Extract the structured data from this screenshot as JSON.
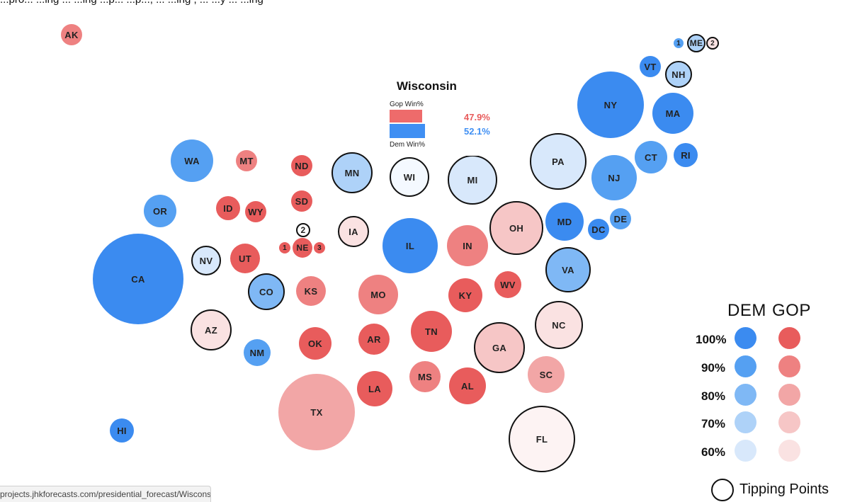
{
  "page": {
    "top_text": "...pro... ...ing ... ...ing ...p... ...p..., ... ...ing , ... ...y ... ...ing"
  },
  "status_bar": {
    "url": "projects.jhkforecasts.com/presidential_forecast/Wisconsin"
  },
  "tooltip": {
    "state": "Wisconsin",
    "gop_label": "Gop Win%",
    "dem_label": "Dem Win%",
    "gop_value": "47.9%",
    "dem_value": "52.1%",
    "gop_win_pct": 47.9,
    "dem_win_pct": 52.1
  },
  "legend": {
    "dem_heading": "DEM",
    "gop_heading": "GOP",
    "levels": [
      "100%",
      "90%",
      "80%",
      "70%",
      "60%"
    ],
    "dem_colors": [
      "#3b8bf0",
      "#55a0f2",
      "#7fb8f5",
      "#aed2f8",
      "#d8e8fb"
    ],
    "gop_colors": [
      "#e85c5c",
      "#ee8181",
      "#f2a6a6",
      "#f6c6c6",
      "#fae2e2"
    ],
    "tipping_label": "Tipping Points"
  },
  "states": [
    {
      "abbr": "AK",
      "color": "#ee8181",
      "tip": false
    },
    {
      "abbr": "HI",
      "color": "#3b8bf0",
      "tip": false
    },
    {
      "abbr": "WA",
      "color": "#55a0f2",
      "tip": false
    },
    {
      "abbr": "OR",
      "color": "#55a0f2",
      "tip": false
    },
    {
      "abbr": "CA",
      "color": "#3b8bf0",
      "tip": false
    },
    {
      "abbr": "NV",
      "color": "#d8e8fb",
      "tip": true
    },
    {
      "abbr": "ID",
      "color": "#e85c5c",
      "tip": false
    },
    {
      "abbr": "MT",
      "color": "#ee8181",
      "tip": false
    },
    {
      "abbr": "WY",
      "color": "#e85c5c",
      "tip": false
    },
    {
      "abbr": "UT",
      "color": "#e85c5c",
      "tip": false
    },
    {
      "abbr": "AZ",
      "color": "#fae2e2",
      "tip": true
    },
    {
      "abbr": "CO",
      "color": "#7fb8f5",
      "tip": true
    },
    {
      "abbr": "NM",
      "color": "#55a0f2",
      "tip": false
    },
    {
      "abbr": "ND",
      "color": "#e85c5c",
      "tip": false
    },
    {
      "abbr": "SD",
      "color": "#e85c5c",
      "tip": false
    },
    {
      "abbr": "2",
      "color": "#ffffff",
      "tip": true
    },
    {
      "abbr": "1",
      "color": "#e85c5c",
      "tip": false
    },
    {
      "abbr": "NE",
      "color": "#e85c5c",
      "tip": false
    },
    {
      "abbr": "3",
      "color": "#e85c5c",
      "tip": false
    },
    {
      "abbr": "KS",
      "color": "#ee8181",
      "tip": false
    },
    {
      "abbr": "OK",
      "color": "#e85c5c",
      "tip": false
    },
    {
      "abbr": "TX",
      "color": "#f2a6a6",
      "tip": false
    },
    {
      "abbr": "MN",
      "color": "#aed2f8",
      "tip": true
    },
    {
      "abbr": "IA",
      "color": "#fae2e2",
      "tip": true
    },
    {
      "abbr": "MO",
      "color": "#ee8181",
      "tip": false
    },
    {
      "abbr": "AR",
      "color": "#e85c5c",
      "tip": false
    },
    {
      "abbr": "LA",
      "color": "#e85c5c",
      "tip": false
    },
    {
      "abbr": "WI",
      "color": "#f4f9ff",
      "tip": true
    },
    {
      "abbr": "IL",
      "color": "#3b8bf0",
      "tip": false
    },
    {
      "abbr": "MI",
      "color": "#d8e8fb",
      "tip": true
    },
    {
      "abbr": "IN",
      "color": "#ee8181",
      "tip": false
    },
    {
      "abbr": "KY",
      "color": "#e85c5c",
      "tip": false
    },
    {
      "abbr": "TN",
      "color": "#e85c5c",
      "tip": false
    },
    {
      "abbr": "MS",
      "color": "#ee8181",
      "tip": false
    },
    {
      "abbr": "AL",
      "color": "#e85c5c",
      "tip": false
    },
    {
      "abbr": "OH",
      "color": "#f6c6c6",
      "tip": true
    },
    {
      "abbr": "WV",
      "color": "#e85c5c",
      "tip": false
    },
    {
      "abbr": "GA",
      "color": "#f6c6c6",
      "tip": true
    },
    {
      "abbr": "FL",
      "color": "#fdf3f3",
      "tip": true
    },
    {
      "abbr": "PA",
      "color": "#d8e8fb",
      "tip": true
    },
    {
      "abbr": "MD",
      "color": "#3b8bf0",
      "tip": false
    },
    {
      "abbr": "DC",
      "color": "#3b8bf0",
      "tip": false
    },
    {
      "abbr": "DE",
      "color": "#55a0f2",
      "tip": false
    },
    {
      "abbr": "VA",
      "color": "#7fb8f5",
      "tip": true
    },
    {
      "abbr": "NC",
      "color": "#fae2e2",
      "tip": true
    },
    {
      "abbr": "SC",
      "color": "#f2a6a6",
      "tip": false
    },
    {
      "abbr": "NY",
      "color": "#3b8bf0",
      "tip": false
    },
    {
      "abbr": "NJ",
      "color": "#55a0f2",
      "tip": false
    },
    {
      "abbr": "CT",
      "color": "#55a0f2",
      "tip": false
    },
    {
      "abbr": "RI",
      "color": "#3b8bf0",
      "tip": false
    },
    {
      "abbr": "MA",
      "color": "#3b8bf0",
      "tip": false
    },
    {
      "abbr": "VT",
      "color": "#3b8bf0",
      "tip": false
    },
    {
      "abbr": "NH",
      "color": "#aed2f8",
      "tip": true
    },
    {
      "abbr": "1",
      "color": "#55a0f2",
      "tip": false
    },
    {
      "abbr": "ME",
      "color": "#aed2f8",
      "tip": true
    },
    {
      "abbr": "2",
      "color": "#fae2e2",
      "tip": true
    }
  ]
}
